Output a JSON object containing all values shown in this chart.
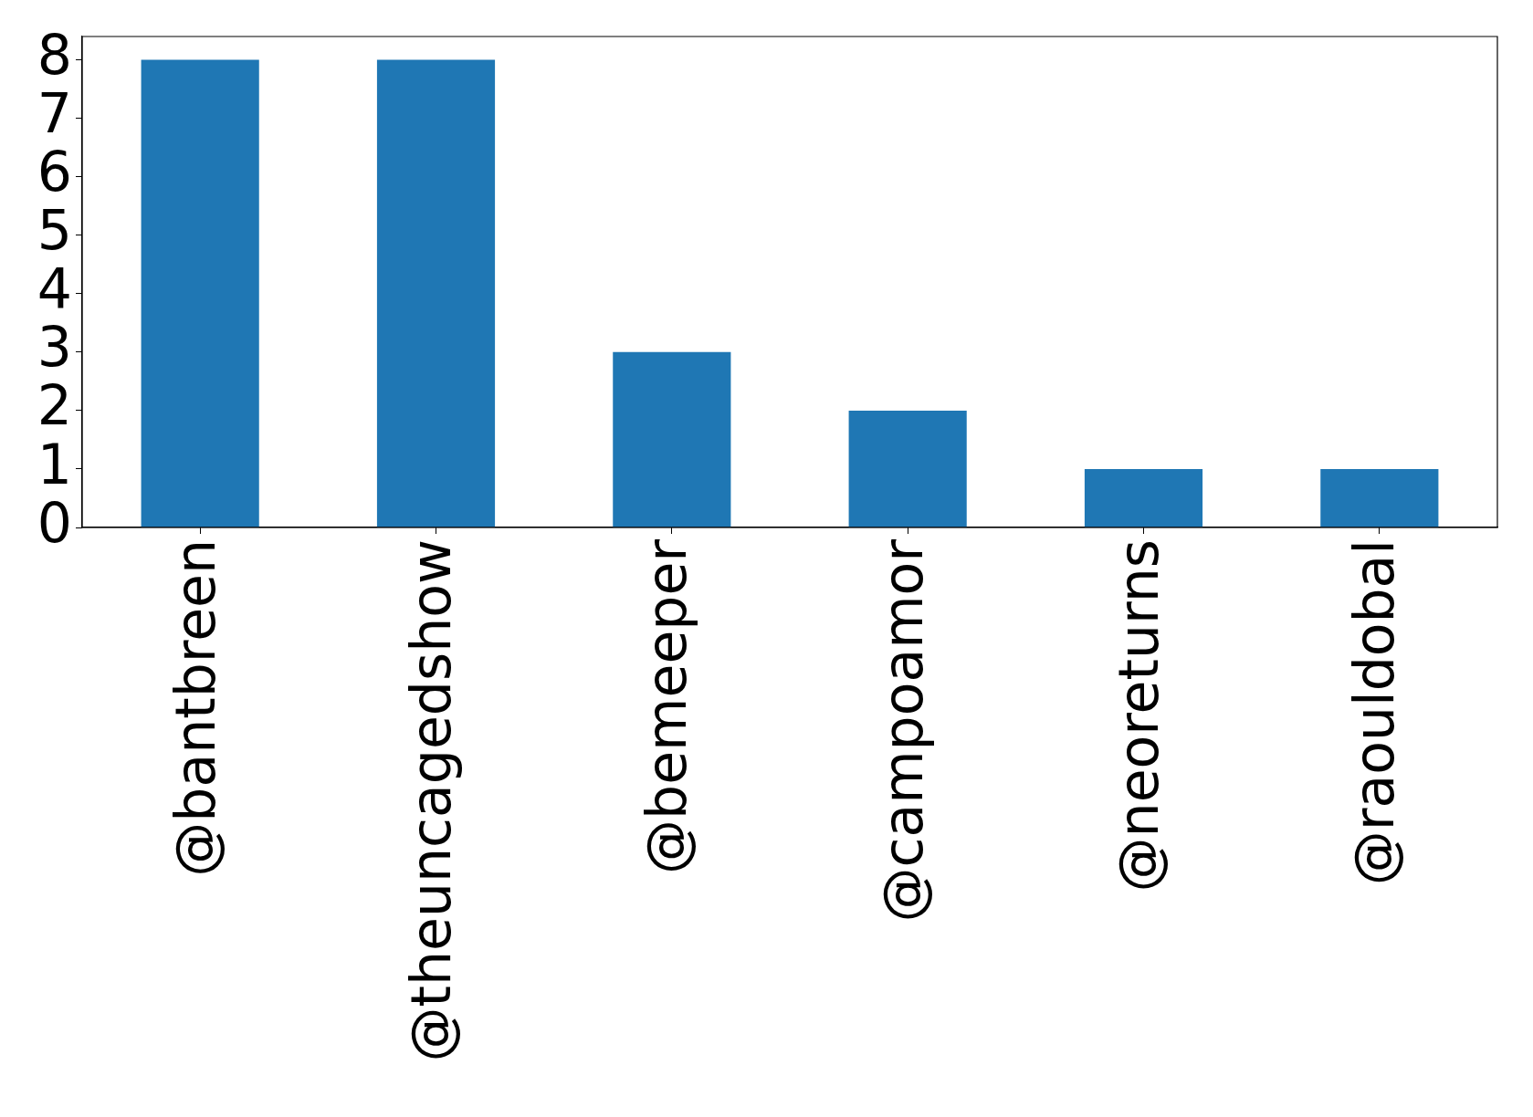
{
  "chart_data": {
    "type": "bar",
    "categories": [
      "@bantbreen",
      "@theuncagedshow",
      "@bemeeper",
      "@campoamor",
      "@neoreturns",
      "@raouldobal"
    ],
    "values": [
      8,
      8,
      3,
      2,
      1,
      1
    ],
    "color": "#1f77b4",
    "ylim": [
      0,
      8.4
    ],
    "yticks": [
      0,
      1,
      2,
      3,
      4,
      5,
      6,
      7,
      8
    ]
  }
}
